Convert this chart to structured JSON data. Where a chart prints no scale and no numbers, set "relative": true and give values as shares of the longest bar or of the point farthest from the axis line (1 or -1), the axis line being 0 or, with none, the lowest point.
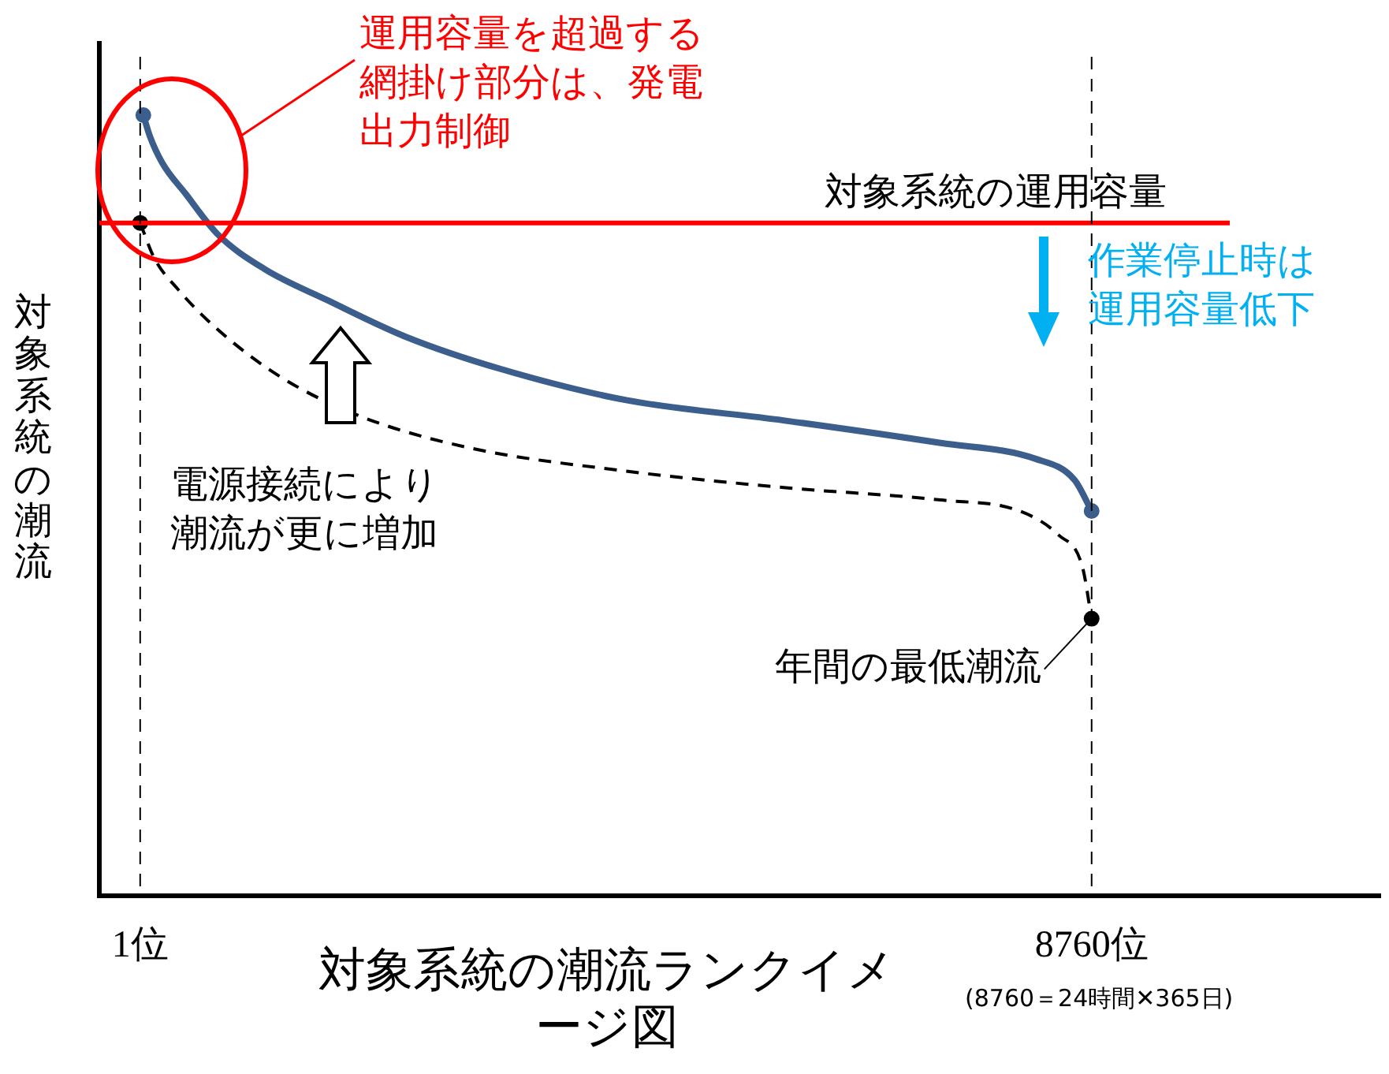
{
  "chart_data": {
    "type": "line",
    "relative": true,
    "xlabel": "対象系統の潮流ランクイメージ図",
    "ylabel": "対象系統の潮流",
    "xlim": [
      -375,
      11425
    ],
    "xticks": [
      {
        "value": 1,
        "label": "1位"
      },
      {
        "value": 8760,
        "label": "8760位"
      }
    ],
    "series": [
      {
        "color": "#3b5e8c",
        "line_style": "solid",
        "x": [
          30,
          88,
          204,
          421,
          710,
          1145,
          1724,
          2448,
          3316,
          4475,
          5923,
          7371,
          8239,
          8601,
          8760
        ],
        "values": [
          1.0,
          0.974,
          0.939,
          0.899,
          0.848,
          0.803,
          0.763,
          0.716,
          0.675,
          0.635,
          0.609,
          0.58,
          0.56,
          0.533,
          0.493
        ]
      },
      {
        "color": "#000000",
        "line_style": "dashed",
        "x": [
          1,
          131,
          348,
          710,
          1290,
          2014,
          3027,
          4475,
          5923,
          7371,
          8095,
          8457,
          8674,
          8760
        ],
        "values": [
          0.862,
          0.817,
          0.777,
          0.726,
          0.665,
          0.615,
          0.574,
          0.544,
          0.523,
          0.507,
          0.493,
          0.462,
          0.422,
          0.355
        ]
      }
    ],
    "ref_lines": [
      {
        "axis": "y",
        "value": 0.862,
        "label": "対象系統の運用容量",
        "color": "#ff0000",
        "line_style": "solid"
      },
      {
        "axis": "x",
        "value": 1,
        "color": "#000000",
        "line_style": "dashed"
      },
      {
        "axis": "x",
        "value": 8760,
        "color": "#000000",
        "line_style": "dashed"
      }
    ],
    "annotations": [
      "運用容量を超過する網掛け部分は、発電出力制御",
      "作業停止時は運用容量低下",
      "電源接続により潮流が更に増加",
      {
        "text": "年間の最低潮流",
        "x": 8760,
        "y": 0.355
      },
      "(8760＝24時間✕365日)"
    ],
    "grid": false,
    "legend": false
  }
}
